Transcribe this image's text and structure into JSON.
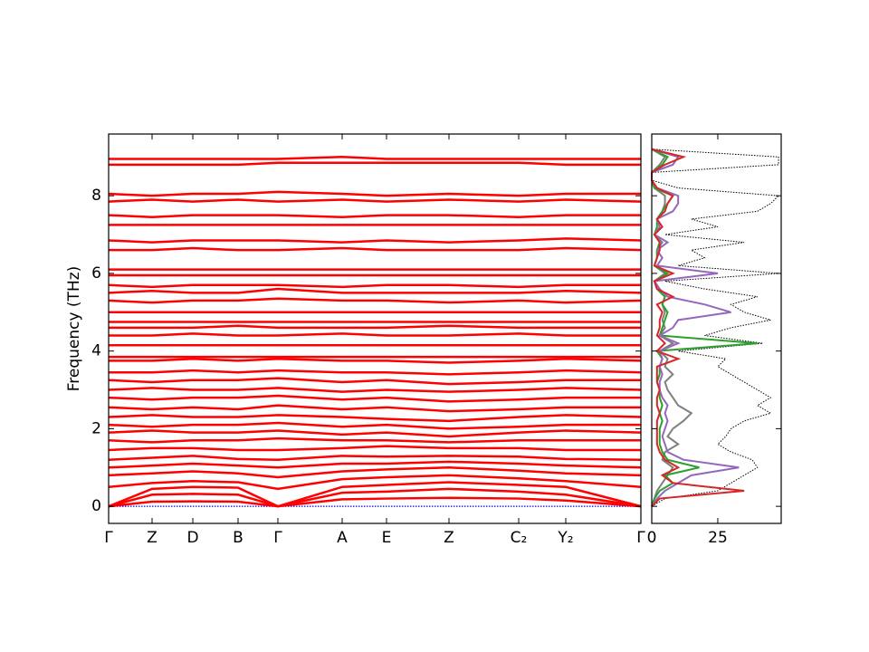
{
  "chart_data": [
    {
      "type": "line",
      "ylabel": "Frequency (THz)",
      "x": [
        0,
        0.48,
        0.93,
        1.43,
        1.87,
        2.58,
        3.07,
        3.76,
        4.53,
        5.05,
        5.88
      ],
      "xlim": [
        0,
        5.88
      ],
      "xticks": [
        {
          "value": 0,
          "label": "Γ"
        },
        {
          "value": 0.48,
          "label": "Z"
        },
        {
          "value": 0.93,
          "label": "D"
        },
        {
          "value": 1.43,
          "label": "B"
        },
        {
          "value": 1.87,
          "label": "Γ"
        },
        {
          "value": 2.58,
          "label": "A"
        },
        {
          "value": 3.07,
          "label": "E"
        },
        {
          "value": 3.76,
          "label": "Z"
        },
        {
          "value": 4.53,
          "label": "C₂"
        },
        {
          "value": 5.05,
          "label": "Y₂"
        },
        {
          "value": 5.88,
          "label": "Γ"
        }
      ],
      "ylim": [
        -0.44,
        9.59
      ],
      "yticks": [
        0,
        2,
        4,
        6,
        8
      ],
      "series": [
        {
          "color": "#0000ff",
          "style": "dotted",
          "values": [
            0,
            0,
            0,
            0,
            0,
            0,
            0,
            0,
            0,
            0,
            0
          ]
        },
        {
          "color": "#ff0000",
          "values": [
            0,
            0.12,
            0.13,
            0.12,
            0,
            0.18,
            0.2,
            0.22,
            0.2,
            0.15,
            0
          ]
        },
        {
          "color": "#ff0000",
          "values": [
            0,
            0.3,
            0.32,
            0.3,
            0,
            0.35,
            0.38,
            0.45,
            0.38,
            0.3,
            0
          ]
        },
        {
          "color": "#ff0000",
          "values": [
            0,
            0.45,
            0.5,
            0.48,
            0,
            0.5,
            0.55,
            0.62,
            0.55,
            0.5,
            0
          ]
        },
        {
          "color": "#ff0000",
          "values": [
            0.5,
            0.6,
            0.65,
            0.62,
            0.45,
            0.7,
            0.75,
            0.8,
            0.72,
            0.65,
            0.5
          ]
        },
        {
          "color": "#ff0000",
          "values": [
            0.8,
            0.85,
            0.9,
            0.85,
            0.75,
            0.9,
            0.95,
            1.0,
            0.92,
            0.85,
            0.8
          ]
        },
        {
          "color": "#ff0000",
          "values": [
            1.0,
            1.05,
            1.1,
            1.05,
            1.0,
            1.1,
            1.1,
            1.15,
            1.1,
            1.05,
            1.0
          ]
        },
        {
          "color": "#ff0000",
          "values": [
            1.2,
            1.25,
            1.3,
            1.22,
            1.2,
            1.3,
            1.28,
            1.3,
            1.28,
            1.22,
            1.2
          ]
        },
        {
          "color": "#ff0000",
          "values": [
            1.45,
            1.5,
            1.5,
            1.45,
            1.45,
            1.5,
            1.55,
            1.5,
            1.5,
            1.45,
            1.45
          ]
        },
        {
          "color": "#ff0000",
          "values": [
            1.7,
            1.65,
            1.7,
            1.7,
            1.75,
            1.7,
            1.7,
            1.65,
            1.7,
            1.7,
            1.7
          ]
        },
        {
          "color": "#ff0000",
          "values": [
            1.9,
            1.95,
            1.9,
            1.9,
            1.95,
            1.85,
            1.9,
            1.8,
            1.9,
            1.95,
            1.9
          ]
        },
        {
          "color": "#ff0000",
          "values": [
            2.1,
            2.05,
            2.1,
            2.1,
            2.15,
            2.05,
            2.1,
            2.0,
            2.05,
            2.1,
            2.1
          ]
        },
        {
          "color": "#ff0000",
          "values": [
            2.3,
            2.35,
            2.3,
            2.3,
            2.35,
            2.3,
            2.25,
            2.2,
            2.3,
            2.35,
            2.3
          ]
        },
        {
          "color": "#ff0000",
          "values": [
            2.55,
            2.5,
            2.55,
            2.5,
            2.6,
            2.5,
            2.55,
            2.45,
            2.5,
            2.55,
            2.55
          ]
        },
        {
          "color": "#ff0000",
          "values": [
            2.8,
            2.75,
            2.8,
            2.8,
            2.85,
            2.75,
            2.8,
            2.7,
            2.75,
            2.8,
            2.8
          ]
        },
        {
          "color": "#ff0000",
          "values": [
            3.0,
            3.05,
            3.0,
            3.0,
            3.05,
            2.95,
            3.0,
            2.95,
            3.0,
            3.05,
            3.0
          ]
        },
        {
          "color": "#ff0000",
          "values": [
            3.25,
            3.2,
            3.25,
            3.25,
            3.3,
            3.2,
            3.25,
            3.15,
            3.2,
            3.25,
            3.25
          ]
        },
        {
          "color": "#ff0000",
          "values": [
            3.45,
            3.45,
            3.5,
            3.45,
            3.5,
            3.45,
            3.45,
            3.4,
            3.45,
            3.5,
            3.45
          ]
        },
        {
          "color": "#ff0000",
          "values": [
            3.75,
            3.75,
            3.8,
            3.75,
            3.8,
            3.75,
            3.75,
            3.7,
            3.75,
            3.8,
            3.75
          ]
        },
        {
          "color": "#ff0000",
          "values": [
            3.85,
            3.85,
            3.85,
            3.85,
            3.85,
            3.85,
            3.85,
            3.85,
            3.85,
            3.85,
            3.85
          ]
        },
        {
          "color": "#ff0000",
          "values": [
            4.15,
            4.15,
            4.15,
            4.15,
            4.15,
            4.15,
            4.15,
            4.15,
            4.15,
            4.15,
            4.15
          ]
        },
        {
          "color": "#ff0000",
          "values": [
            4.4,
            4.4,
            4.45,
            4.4,
            4.4,
            4.45,
            4.4,
            4.4,
            4.45,
            4.4,
            4.4
          ]
        },
        {
          "color": "#ff0000",
          "values": [
            4.6,
            4.6,
            4.6,
            4.65,
            4.6,
            4.6,
            4.6,
            4.65,
            4.6,
            4.6,
            4.6
          ]
        },
        {
          "color": "#ff0000",
          "values": [
            4.75,
            4.75,
            4.75,
            4.75,
            4.75,
            4.75,
            4.75,
            4.75,
            4.75,
            4.75,
            4.75
          ]
        },
        {
          "color": "#ff0000",
          "values": [
            5.0,
            5.0,
            5.0,
            5.0,
            5.0,
            5.0,
            5.0,
            5.0,
            5.0,
            5.0,
            5.0
          ]
        },
        {
          "color": "#ff0000",
          "values": [
            5.3,
            5.25,
            5.3,
            5.3,
            5.35,
            5.3,
            5.3,
            5.25,
            5.3,
            5.25,
            5.3
          ]
        },
        {
          "color": "#ff0000",
          "values": [
            5.5,
            5.55,
            5.5,
            5.5,
            5.6,
            5.5,
            5.5,
            5.5,
            5.5,
            5.55,
            5.5
          ]
        },
        {
          "color": "#ff0000",
          "values": [
            5.7,
            5.65,
            5.7,
            5.7,
            5.7,
            5.65,
            5.7,
            5.7,
            5.65,
            5.7,
            5.7
          ]
        },
        {
          "color": "#ff0000",
          "values": [
            5.95,
            5.95,
            5.95,
            5.95,
            5.95,
            5.95,
            5.95,
            5.95,
            5.95,
            5.95,
            5.95
          ]
        },
        {
          "color": "#ff0000",
          "values": [
            6.1,
            6.1,
            6.1,
            6.1,
            6.1,
            6.1,
            6.1,
            6.1,
            6.1,
            6.1,
            6.1
          ]
        },
        {
          "color": "#ff0000",
          "values": [
            6.6,
            6.6,
            6.65,
            6.6,
            6.6,
            6.65,
            6.6,
            6.6,
            6.6,
            6.65,
            6.6
          ]
        },
        {
          "color": "#ff0000",
          "values": [
            6.85,
            6.8,
            6.85,
            6.85,
            6.85,
            6.8,
            6.85,
            6.8,
            6.85,
            6.9,
            6.85
          ]
        },
        {
          "color": "#ff0000",
          "values": [
            7.25,
            7.25,
            7.25,
            7.25,
            7.25,
            7.25,
            7.25,
            7.25,
            7.25,
            7.25,
            7.25
          ]
        },
        {
          "color": "#ff0000",
          "values": [
            7.5,
            7.45,
            7.5,
            7.5,
            7.5,
            7.45,
            7.5,
            7.5,
            7.45,
            7.5,
            7.5
          ]
        },
        {
          "color": "#ff0000",
          "values": [
            7.85,
            7.9,
            7.85,
            7.9,
            7.85,
            7.9,
            7.85,
            7.9,
            7.85,
            7.9,
            7.85
          ]
        },
        {
          "color": "#ff0000",
          "values": [
            8.05,
            8.0,
            8.05,
            8.05,
            8.1,
            8.05,
            8.0,
            8.05,
            8.0,
            8.05,
            8.05
          ]
        },
        {
          "color": "#ff0000",
          "values": [
            8.8,
            8.8,
            8.8,
            8.8,
            8.85,
            8.85,
            8.85,
            8.85,
            8.85,
            8.8,
            8.8
          ]
        },
        {
          "color": "#ff0000",
          "values": [
            8.95,
            8.95,
            8.95,
            8.95,
            8.95,
            9.0,
            8.95,
            8.95,
            8.95,
            8.95,
            8.95
          ]
        }
      ]
    },
    {
      "type": "line",
      "orientation": "horizontal",
      "y": [
        0,
        0.2,
        0.4,
        0.6,
        0.8,
        1,
        1.2,
        1.4,
        1.6,
        1.8,
        2,
        2.2,
        2.4,
        2.6,
        2.8,
        3,
        3.2,
        3.4,
        3.6,
        3.8,
        4,
        4.2,
        4.4,
        4.6,
        4.8,
        5,
        5.2,
        5.4,
        5.6,
        5.8,
        6,
        6.2,
        6.4,
        6.6,
        6.8,
        7,
        7.2,
        7.4,
        7.6,
        7.8,
        8,
        8.2,
        8.4,
        8.6,
        8.8,
        9,
        9.2
      ],
      "xlim": [
        0,
        49
      ],
      "xticks": [
        0,
        25
      ],
      "ylim": [
        -0.44,
        9.59
      ],
      "yticks": [
        0,
        2,
        4,
        6,
        8
      ],
      "series": [
        {
          "color": "#000000",
          "style": "dotted",
          "values": [
            0,
            5,
            25,
            30,
            35,
            40,
            38,
            30,
            25,
            28,
            30,
            35,
            45,
            40,
            45,
            40,
            35,
            30,
            25,
            28,
            10,
            42,
            20,
            30,
            45,
            35,
            30,
            40,
            20,
            5,
            48,
            10,
            20,
            15,
            35,
            5,
            25,
            15,
            40,
            45,
            48,
            10,
            0,
            0,
            48,
            48,
            0
          ]
        },
        {
          "color": "#7f7f7f",
          "values": [
            0,
            1,
            2,
            4,
            6,
            8,
            4,
            5,
            10,
            6,
            8,
            12,
            15,
            10,
            8,
            6,
            5,
            8,
            5,
            6,
            3,
            8,
            3,
            5,
            4,
            5,
            4,
            5,
            2,
            1,
            5,
            1,
            2,
            2,
            4,
            1,
            3,
            2,
            4,
            5,
            5,
            1,
            0,
            0,
            3,
            5,
            0
          ]
        },
        {
          "color": "#2ca02c",
          "values": [
            0,
            1,
            3,
            8,
            5,
            18,
            6,
            4,
            3,
            3,
            3,
            4,
            3,
            4,
            3,
            3,
            2,
            3,
            3,
            4,
            2,
            40,
            3,
            4,
            5,
            6,
            4,
            5,
            2,
            1,
            6,
            1,
            2,
            2,
            3,
            1,
            2,
            2,
            4,
            6,
            8,
            1,
            0,
            0,
            4,
            6,
            0
          ]
        },
        {
          "color": "#9467bd",
          "values": [
            0,
            2,
            5,
            10,
            15,
            33,
            12,
            6,
            5,
            4,
            5,
            6,
            5,
            6,
            4,
            3,
            3,
            4,
            3,
            4,
            3,
            10,
            3,
            8,
            10,
            30,
            20,
            6,
            3,
            1,
            25,
            2,
            4,
            2,
            6,
            1,
            3,
            2,
            8,
            10,
            10,
            2,
            0,
            0,
            8,
            10,
            0
          ]
        },
        {
          "color": "#d62728",
          "values": [
            0,
            3,
            35,
            8,
            4,
            10,
            5,
            3,
            2,
            2,
            2,
            2,
            3,
            2,
            2,
            3,
            2,
            2,
            2,
            10,
            2,
            5,
            2,
            3,
            3,
            4,
            2,
            8,
            2,
            1,
            8,
            1,
            2,
            3,
            3,
            1,
            4,
            2,
            5,
            6,
            8,
            2,
            0,
            0,
            5,
            12,
            0
          ]
        }
      ]
    }
  ]
}
